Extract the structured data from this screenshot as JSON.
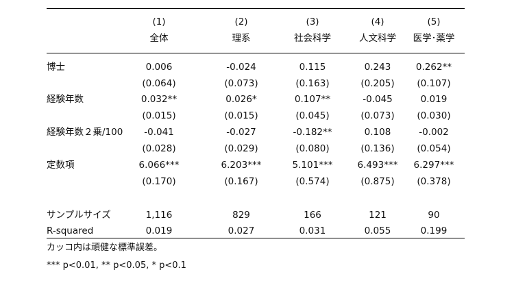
{
  "columns": [
    {
      "number": "(1)",
      "name": "全体"
    },
    {
      "number": "(2)",
      "name": "理系"
    },
    {
      "number": "(3)",
      "name": "社会科学"
    },
    {
      "number": "(4)",
      "name": "人文科学"
    },
    {
      "number": "(5)",
      "name": "医学･薬学"
    }
  ],
  "rows": [
    {
      "label": "博士",
      "values": [
        "0.006",
        "-0.024",
        "0.115",
        "0.243",
        "0.262**"
      ],
      "se": [
        "(0.064)",
        "(0.073)",
        "(0.163)",
        "(0.205)",
        "(0.107)"
      ]
    },
    {
      "label": "経験年数",
      "values": [
        "0.032**",
        "0.026*",
        "0.107**",
        "-0.045",
        "0.019"
      ],
      "se": [
        "(0.015)",
        "(0.015)",
        "(0.045)",
        "(0.073)",
        "(0.030)"
      ]
    },
    {
      "label": "経験年数２乗/100",
      "values": [
        "-0.041",
        "-0.027",
        "-0.182**",
        "0.108",
        "-0.002"
      ],
      "se": [
        "(0.028)",
        "(0.029)",
        "(0.080)",
        "(0.136)",
        "(0.054)"
      ]
    },
    {
      "label": "定数項",
      "values": [
        "6.066***",
        "6.203***",
        "5.101***",
        "6.493***",
        "6.297***"
      ],
      "se": [
        "(0.170)",
        "(0.167)",
        "(0.574)",
        "(0.875)",
        "(0.378)"
      ]
    }
  ],
  "stats": [
    {
      "label": "サンプルサイズ",
      "values": [
        "1,116",
        "829",
        "166",
        "121",
        "90"
      ]
    },
    {
      "label": "R-squared",
      "values": [
        "0.019",
        "0.027",
        "0.031",
        "0.055",
        "0.199"
      ]
    }
  ],
  "notes": {
    "se_note": "カッコ内は頑健な標準誤差。",
    "sig_note": "*** p<0.01, ** p<0.05, * p<0.1"
  }
}
